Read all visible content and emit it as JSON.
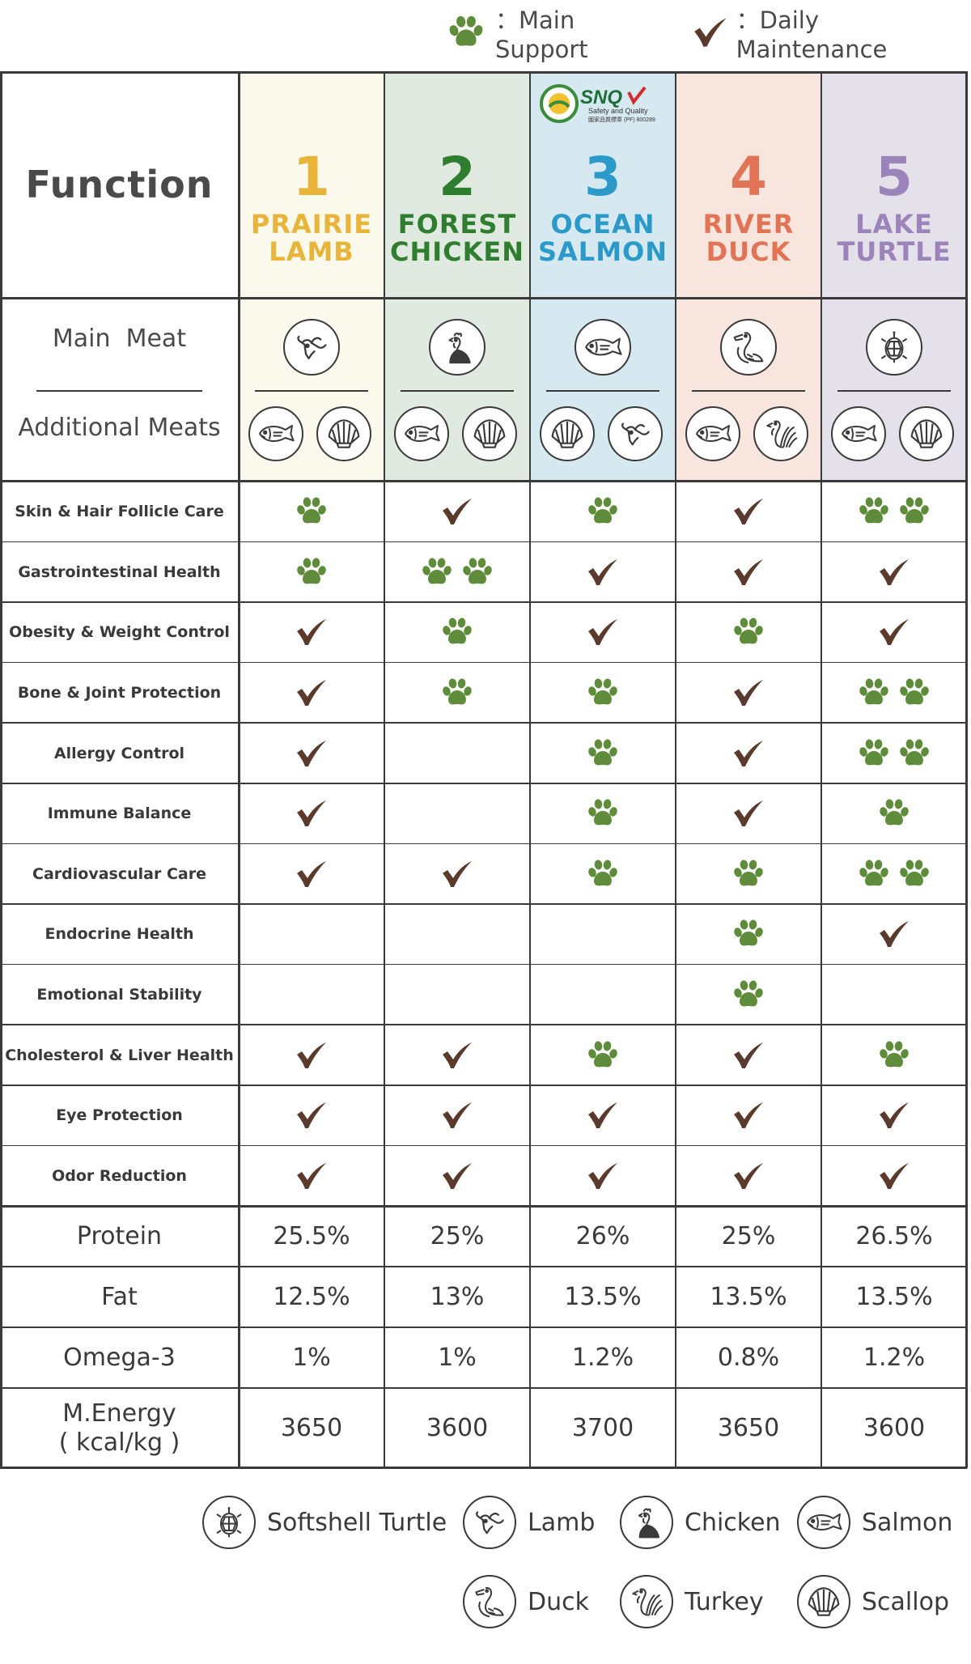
{
  "legend": {
    "main_support": "：Main Support",
    "daily_maintenance": "：Daily Maintenance"
  },
  "colors": {
    "paw": "#5e8c3a",
    "check": "#5b3a2e",
    "prairie": "#e9b43a",
    "forest": "#2f7d2f",
    "ocean": "#2b9ac9",
    "river": "#e07455",
    "lake": "#9b84b9"
  },
  "header": {
    "function_label": "Function",
    "main_meat_label": "Main  Meat",
    "additional_meats_label": "Additional Meats",
    "products": [
      {
        "number": "1",
        "line1": "PRAIRIE",
        "line2": "LAMB",
        "main_meat": "lamb-icon",
        "additional": [
          "salmon-icon",
          "scallop-icon"
        ]
      },
      {
        "number": "2",
        "line1": "FOREST",
        "line2": "CHICKEN",
        "main_meat": "chicken-icon",
        "additional": [
          "salmon-icon",
          "scallop-icon"
        ]
      },
      {
        "number": "3",
        "line1": "OCEAN",
        "line2": "SALMON",
        "main_meat": "salmon-icon",
        "additional": [
          "scallop-icon",
          "lamb-icon"
        ],
        "badge": {
          "brand": "SNQ",
          "sub": "Safety and Quality",
          "code": "國家品質標章 (PF) 800289"
        }
      },
      {
        "number": "4",
        "line1": "RIVER",
        "line2": "DUCK",
        "main_meat": "duck-icon",
        "additional": [
          "salmon-icon",
          "turkey-icon"
        ]
      },
      {
        "number": "5",
        "line1": "LAKE",
        "line2": "TURTLE",
        "main_meat": "turtle-icon",
        "additional": [
          "salmon-icon",
          "scallop-icon"
        ]
      }
    ]
  },
  "functions": [
    {
      "label": "Skin & Hair Follicle Care",
      "marks": [
        "paw1",
        "check",
        "paw1",
        "check",
        "paw2"
      ]
    },
    {
      "label": "Gastrointestinal Health",
      "marks": [
        "paw1",
        "paw2",
        "check",
        "check",
        "check"
      ]
    },
    {
      "label": "Obesity & Weight Control",
      "marks": [
        "check",
        "paw1",
        "check",
        "paw1",
        "check"
      ]
    },
    {
      "label": "Bone & Joint Protection",
      "marks": [
        "check",
        "paw1",
        "paw1",
        "check",
        "paw2"
      ]
    },
    {
      "label": "Allergy Control",
      "marks": [
        "check",
        "",
        "paw1",
        "check",
        "paw2"
      ]
    },
    {
      "label": "Immune Balance",
      "marks": [
        "check",
        "",
        "paw1",
        "check",
        "paw1"
      ]
    },
    {
      "label": "Cardiovascular Care",
      "marks": [
        "check",
        "check",
        "paw1",
        "paw1",
        "paw2"
      ]
    },
    {
      "label": "Endocrine Health",
      "marks": [
        "",
        "",
        "",
        "paw1",
        "check"
      ]
    },
    {
      "label": "Emotional Stability",
      "marks": [
        "",
        "",
        "",
        "paw1",
        ""
      ]
    },
    {
      "label": "Cholesterol & Liver Health",
      "marks": [
        "check",
        "check",
        "paw1",
        "check",
        "paw1"
      ]
    },
    {
      "label": "Eye Protection",
      "marks": [
        "check",
        "check",
        "check",
        "check",
        "check"
      ]
    },
    {
      "label": "Odor Reduction",
      "marks": [
        "check",
        "check",
        "check",
        "check",
        "check"
      ]
    }
  ],
  "nutrition": [
    {
      "label": "Protein",
      "values": [
        "25.5%",
        "25%",
        "26%",
        "25%",
        "26.5%"
      ]
    },
    {
      "label": "Fat",
      "values": [
        "12.5%",
        "13%",
        "13.5%",
        "13.5%",
        "13.5%"
      ]
    },
    {
      "label": "Omega-3",
      "values": [
        "1%",
        "1%",
        "1.2%",
        "0.8%",
        "1.2%"
      ]
    },
    {
      "label": "M.Energy",
      "label2": "( kcal/kg )",
      "values": [
        "3650",
        "3600",
        "3700",
        "3650",
        "3600"
      ]
    }
  ],
  "meat_legend": [
    {
      "icon": "turtle-icon",
      "label": "Softshell Turtle"
    },
    {
      "icon": "lamb-icon",
      "label": "Lamb"
    },
    {
      "icon": "chicken-icon",
      "label": "Chicken"
    },
    {
      "icon": "salmon-icon",
      "label": "Salmon"
    },
    {
      "icon": "duck-icon",
      "label": "Duck"
    },
    {
      "icon": "turkey-icon",
      "label": "Turkey"
    },
    {
      "icon": "scallop-icon",
      "label": "Scallop"
    }
  ]
}
